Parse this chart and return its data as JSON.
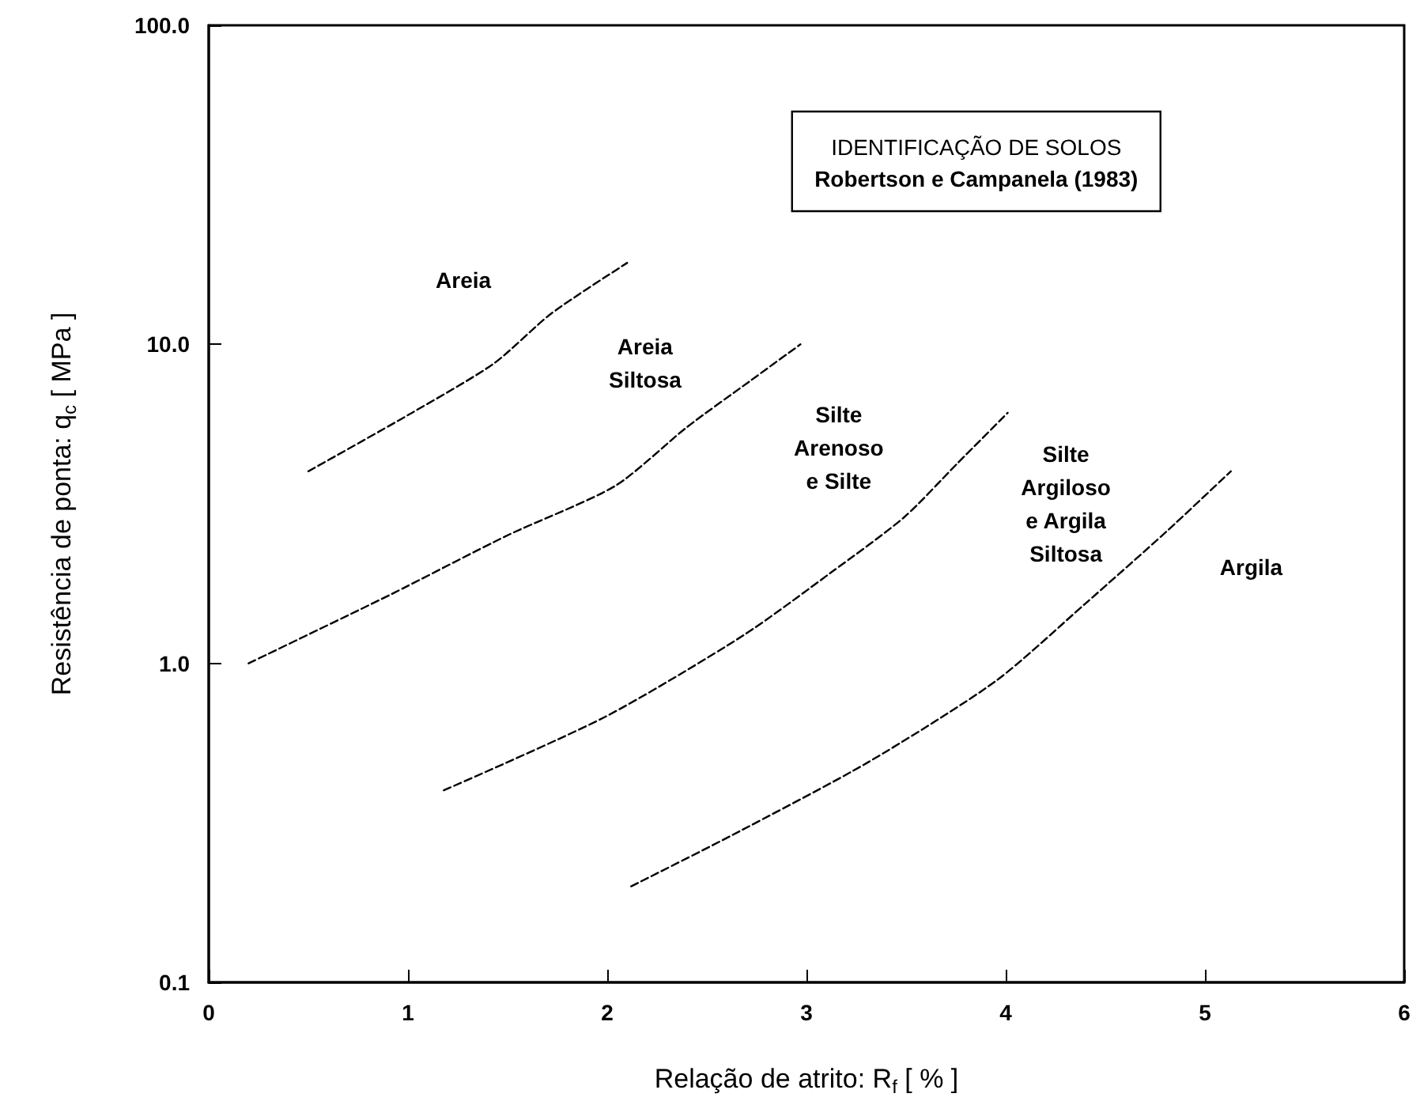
{
  "chart_data": {
    "type": "line",
    "title": "IDENTIFICAÇÃO DE SOLOS",
    "subtitle": "Robertson e Campanela (1983)",
    "xlabel": "Relação de atrito: R$_{f}$ [ % ]",
    "ylabel": "Resistência de ponta: q$_{c}$ [ MPa ]",
    "log": "y",
    "xlim": [
      0,
      6
    ],
    "xticks": [
      0,
      1,
      2,
      3,
      4,
      5,
      6
    ],
    "ylim": [
      0.1,
      100
    ],
    "yticks": [
      0.1,
      {
        "value": 1,
        "label": "1.0"
      },
      {
        "value": 10,
        "label": "10.0"
      },
      {
        "value": 100,
        "label": "100.0"
      }
    ],
    "grid": false,
    "marker": "none",
    "line_style": "dashed",
    "series": [
      {
        "color": "#000000",
        "x": [
          0.5,
          1.02,
          1.43,
          1.72,
          2.1
        ],
        "values": [
          4,
          6.1,
          8.7,
          12.5,
          18
        ]
      },
      {
        "color": "#000000",
        "x": [
          0.2,
          0.91,
          1.5,
          2.04,
          2.4,
          2.72,
          2.97
        ],
        "values": [
          1,
          1.64,
          2.52,
          3.6,
          5.5,
          7.7,
          10
        ]
      },
      {
        "color": "#000000",
        "x": [
          1.18,
          1.99,
          2.68,
          3.13,
          3.49,
          3.76,
          4.01
        ],
        "values": [
          0.4,
          0.68,
          1.22,
          1.94,
          2.87,
          4.25,
          6.1
        ]
      },
      {
        "color": "#000000",
        "x": [
          2.12,
          2.63,
          3.31,
          3.95,
          4.4,
          4.81,
          5.13
        ],
        "values": [
          0.2,
          0.29,
          0.49,
          0.88,
          1.54,
          2.6,
          4
        ]
      }
    ],
    "annotations": [
      "Areia",
      "Areia\nSiltosa",
      "Silte\nArenoso\ne Silte",
      "Silte\nArgiloso\ne Argila\nSiltosa",
      "Argila"
    ]
  }
}
